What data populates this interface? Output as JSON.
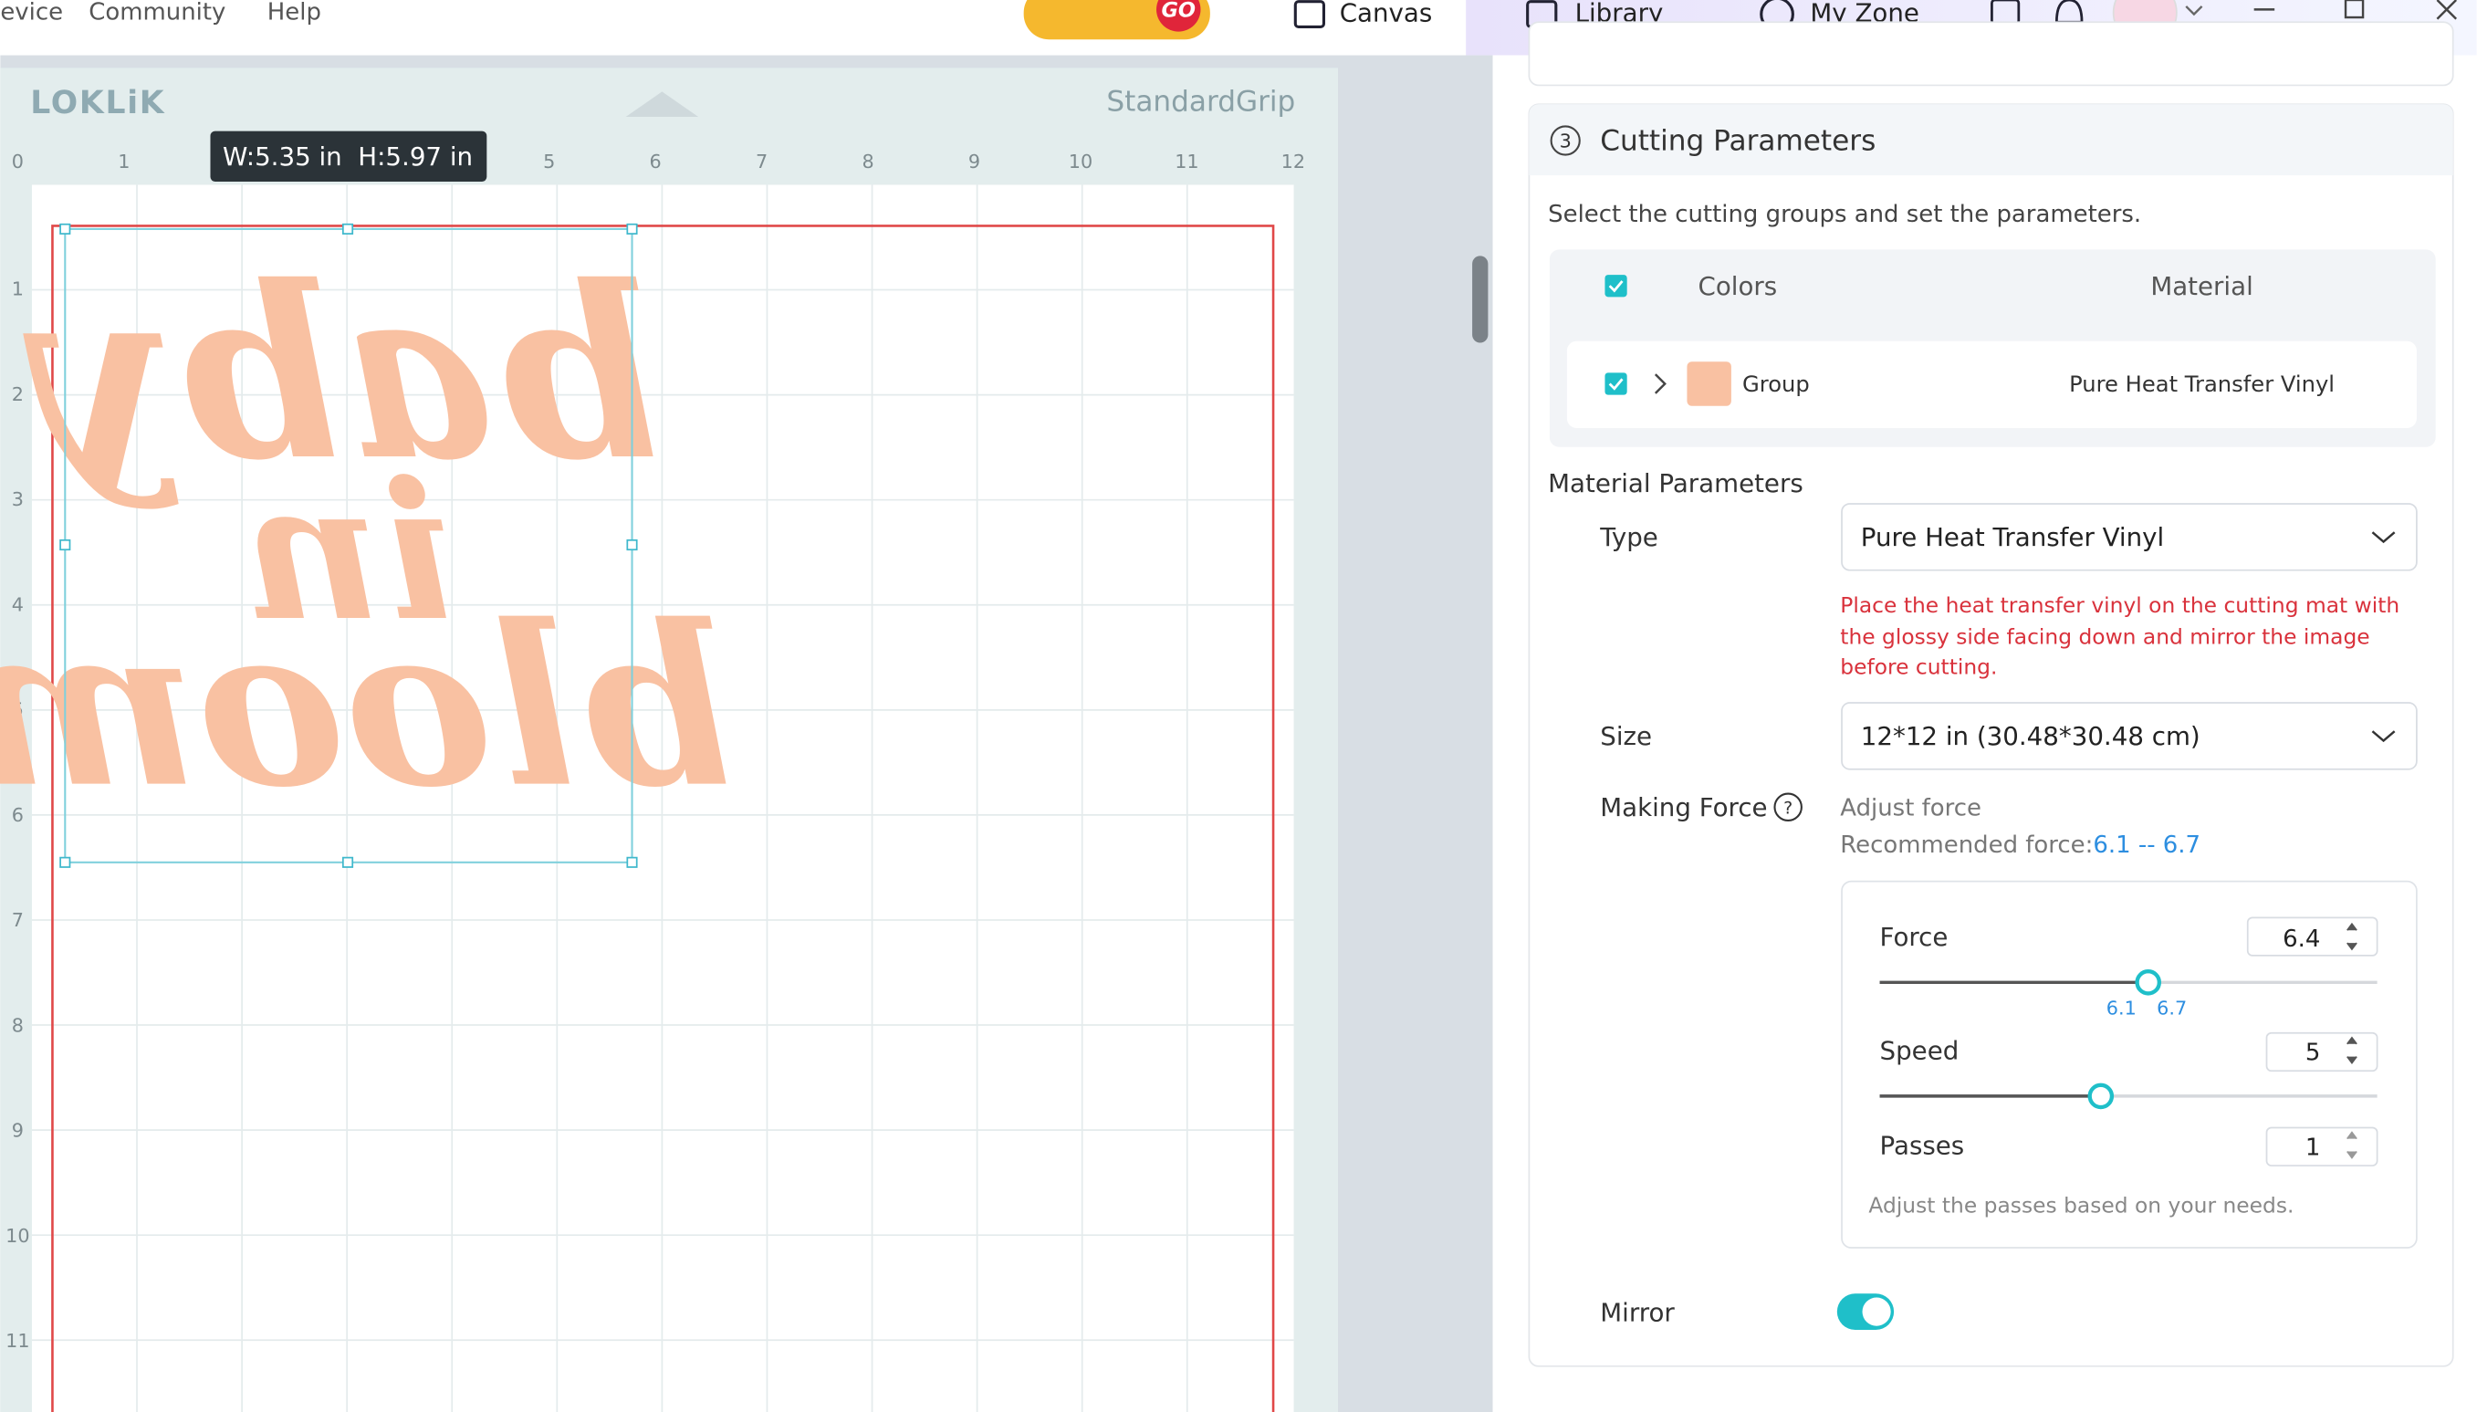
{
  "menu": [
    "evice",
    "Community",
    "Help"
  ],
  "gallery_badge": "GO",
  "tabs": [
    "Canvas",
    "Library",
    "My Zone"
  ],
  "canvas": {
    "brand": "LOKLiK",
    "mat": "StandardGrip",
    "size_tooltip": "W:5.35 in  H:5.97 in",
    "ruler_top": [
      0,
      1,
      5,
      6,
      7,
      8,
      9,
      10,
      11,
      12
    ],
    "ruler_left": [
      1,
      2,
      3,
      4,
      5,
      6,
      7,
      8,
      9,
      10,
      11
    ],
    "design_lines": [
      "baby",
      "in",
      "bloom"
    ]
  },
  "panel": {
    "step": "3",
    "title": "Cutting Parameters",
    "instruction": "Select the cutting groups and set the parameters.",
    "table": {
      "headers": [
        "Colors",
        "Material"
      ],
      "rows": [
        [
          "Group",
          "Pure Heat Transfer Vinyl"
        ]
      ]
    },
    "material_parameters": "Material Parameters",
    "type_label": "Type",
    "type_value": "Pure Heat Transfer Vinyl",
    "warning": [
      "Place the heat transfer vinyl on the cutting mat with",
      "the glossy side facing down and mirror the image",
      "before cutting."
    ],
    "size_label": "Size",
    "size_value": "12*12 in (30.48*30.48 cm)",
    "force_label": "Making Force",
    "adjust_force": "Adjust force",
    "recommended": "Recommended force:",
    "recommended_range": "6.1 -- 6.7",
    "force": {
      "label": "Force",
      "value": "6.4",
      "min_mark": "6.1",
      "max_mark": "6.7"
    },
    "speed": {
      "label": "Speed",
      "value": "5"
    },
    "passes": {
      "label": "Passes",
      "value": "1",
      "hint": "Adjust the passes based on your needs."
    },
    "mirror_label": "Mirror"
  }
}
